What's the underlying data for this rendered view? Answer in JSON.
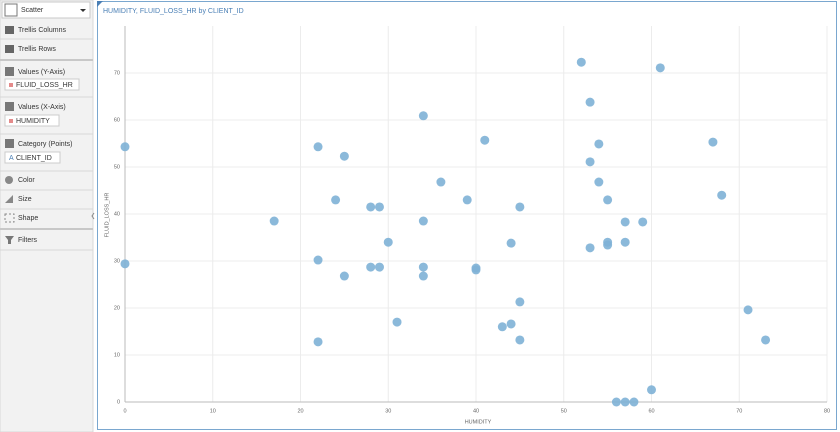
{
  "sidebar": {
    "chart_type": "Scatter",
    "trellis_columns": "Trellis Columns",
    "trellis_rows": "Trellis Rows",
    "y_axis": {
      "label": "Values (Y-Axis)",
      "chip": "FLUID_LOSS_HR"
    },
    "x_axis": {
      "label": "Values (X-Axis)",
      "chip": "HUMIDITY"
    },
    "category": {
      "label": "Category (Points)",
      "chip": "CLIENT_ID"
    },
    "color": "Color",
    "size": "Size",
    "shape": "Shape",
    "filters": "Filters"
  },
  "chart_data": {
    "type": "scatter",
    "title": "HUMIDITY, FLUID_LOSS_HR by CLIENT_ID",
    "x_label": "HUMIDITY",
    "y_label": "FLUID_LOSS_HR",
    "color": "#7eb1d6",
    "x": [
      0,
      0,
      17,
      22,
      22,
      22,
      25,
      25,
      24,
      28,
      29,
      28,
      29,
      30,
      31,
      34,
      34,
      34,
      34,
      36,
      39,
      41,
      40,
      40,
      43,
      44,
      44,
      45,
      45,
      45,
      52,
      53,
      53,
      53,
      54,
      54,
      55,
      55,
      55,
      56,
      57,
      58,
      57,
      57,
      59,
      60,
      61,
      67,
      68,
      71,
      73
    ],
    "values": [
      54.3,
      29.4,
      38.5,
      54.3,
      30.2,
      12.8,
      52.3,
      26.8,
      43,
      41.5,
      41.5,
      28.7,
      28.7,
      34,
      17,
      60.9,
      38.5,
      28.7,
      26.8,
      46.8,
      43,
      55.7,
      28.5,
      28.1,
      16,
      16.6,
      33.8,
      41.5,
      21.3,
      13.2,
      72.3,
      63.8,
      51.1,
      32.8,
      54.9,
      46.8,
      43,
      34,
      33.4,
      0,
      0,
      0,
      38.3,
      34,
      38.3,
      2.6,
      71.1,
      55.3,
      44,
      19.6,
      13.2
    ],
    "xlim": [
      0,
      80
    ],
    "xticks": [
      0,
      10,
      20,
      30,
      40,
      50,
      60,
      70,
      80
    ],
    "ylim": [
      0,
      80
    ],
    "yticks": [
      0,
      10,
      20,
      30,
      40,
      50,
      60,
      70
    ],
    "grid": true
  }
}
